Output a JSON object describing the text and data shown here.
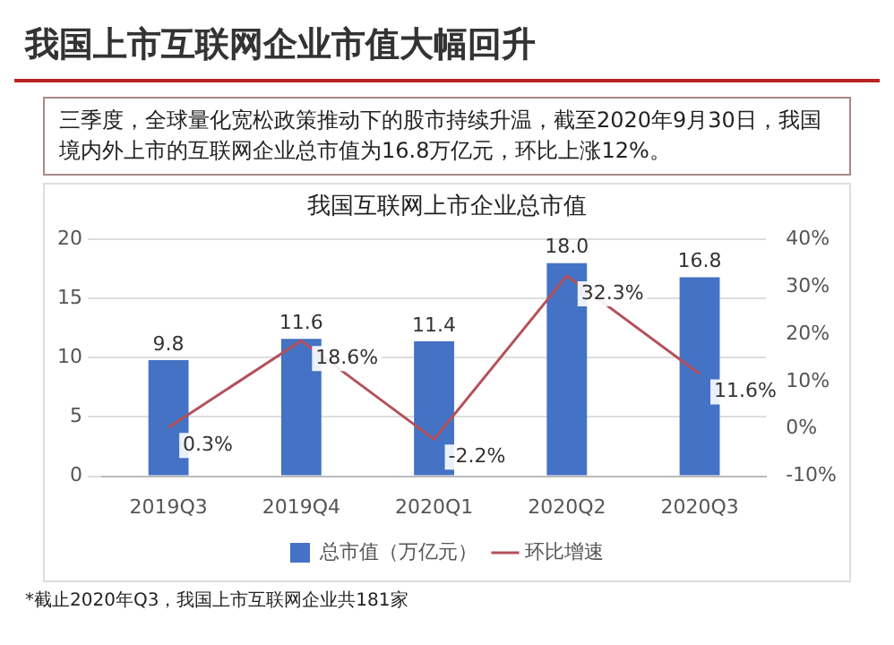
{
  "chart_data": {
    "type": "bar",
    "title": "我国上市互联网企业市值大幅回升",
    "subtitle": "三季度，全球量化宽松政策推动下的股市持续升温，截至2020年9月30日，我国境内外上市的互联网企业总市值为16.8万亿元，环比上涨12%。",
    "annotations": [
      "我国互联网上市企业总市值",
      "*截止2020年Q3，我国上市互联网企业共181家"
    ],
    "categories": [
      "2019Q3",
      "2019Q4",
      "2020Q1",
      "2020Q2",
      "2020Q3"
    ],
    "series": [
      {
        "name": "总市值（万亿元）",
        "color": "#4472c4",
        "values": [
          9.8,
          11.6,
          11.4,
          18.0,
          16.8
        ],
        "value_labels": [
          "9.8",
          "11.6",
          "11.4",
          "18.0",
          "16.8"
        ]
      },
      {
        "name": "环比增速",
        "type": "line",
        "axis": "y2",
        "color": "#b5505a",
        "values": [
          0.3,
          18.6,
          -2.2,
          32.3,
          11.6
        ],
        "value_labels": [
          "0.3%",
          "18.6%",
          "-2.2%",
          "32.3%",
          "11.6%"
        ]
      }
    ],
    "ylim": [
      0,
      20
    ],
    "yticks": [
      0,
      5,
      10,
      15,
      20
    ],
    "y2lim": [
      -10,
      40
    ],
    "y2ticks": [
      {
        "value": -10,
        "label": "-10%"
      },
      {
        "value": 0,
        "label": "0%"
      },
      {
        "value": 10,
        "label": "10%"
      },
      {
        "value": 20,
        "label": "20%"
      },
      {
        "value": 30,
        "label": "30%"
      },
      {
        "value": 40,
        "label": "40%"
      }
    ],
    "grid": "y",
    "legend": "bottom",
    "marker": "none",
    "line_style": "solid"
  }
}
